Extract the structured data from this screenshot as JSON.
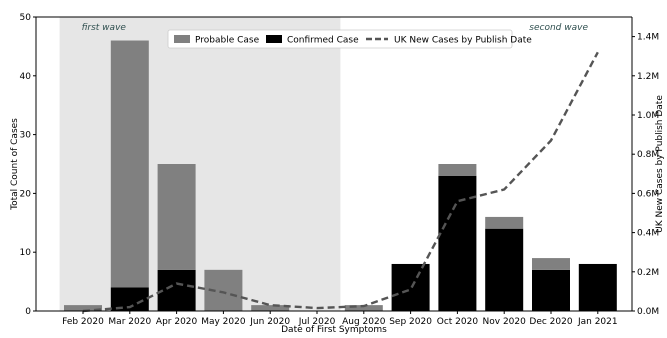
{
  "chart_data": {
    "type": "bar",
    "categories": [
      "Feb 2020",
      "Mar 2020",
      "Apr 2020",
      "May 2020",
      "Jun 2020",
      "Jul 2020",
      "Aug 2020",
      "Sep 2020",
      "Oct 2020",
      "Nov 2020",
      "Dec 2020",
      "Jan 2021"
    ],
    "series": [
      {
        "name": "Probable Case",
        "color": "#808080",
        "values": [
          1,
          42,
          18,
          7,
          1,
          0,
          1,
          0,
          2,
          2,
          2,
          0
        ]
      },
      {
        "name": "Confirmed Case",
        "color": "#000000",
        "values": [
          0,
          4,
          7,
          0,
          0,
          0,
          0,
          8,
          23,
          14,
          7,
          8
        ]
      }
    ],
    "line_series": {
      "name": "UK New Cases by Publish Date",
      "color": "#555555",
      "style": "dashed",
      "axis": "right",
      "values": [
        0,
        20000,
        140000,
        95000,
        30000,
        15000,
        25000,
        110000,
        560000,
        620000,
        870000,
        1320000
      ]
    },
    "stacked": true,
    "xlabel": "Date of First Symptoms",
    "ylabel": "Total Count of Cases",
    "ylim": [
      0,
      50
    ],
    "yticks": [
      0,
      10,
      20,
      30,
      40,
      50
    ],
    "y2label": "UK New Cases by Publish Date",
    "y2lim": [
      0,
      1500000
    ],
    "y2ticks": [
      0,
      200000,
      400000,
      600000,
      800000,
      1000000,
      1200000,
      1400000
    ],
    "y2ticklabels": [
      "0.0M",
      "0.2M",
      "0.4M",
      "0.6M",
      "0.8M",
      "1.0M",
      "1.2M",
      "1.4M"
    ],
    "shaded_region": {
      "from_category": "Feb 2020",
      "to_category": "Jul 2020",
      "color": "#e6e6e6"
    },
    "annotations": [
      {
        "text": "first wave",
        "near_category": "Feb 2020",
        "position": "top"
      },
      {
        "text": "second wave",
        "near_category": "Dec 2020",
        "position": "top"
      }
    ],
    "legend": {
      "placement": "top-center",
      "entries": [
        "Probable Case",
        "Confirmed Case",
        "UK New Cases by Publish Date"
      ]
    },
    "grid": false
  }
}
